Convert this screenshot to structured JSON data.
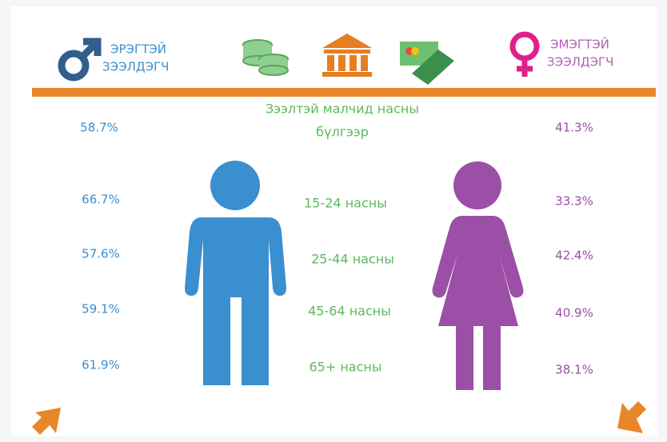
{
  "header": {
    "male_label": [
      "ЭРЭГТЭЙ",
      "ЗЭЭЛДЭГЧ"
    ],
    "female_label": [
      "ЭМЭГТЭЙ",
      "ЗЭЭЛДЭГЧ"
    ]
  },
  "title": [
    "Зээлтэй малчид насны",
    "бүлгээр"
  ],
  "overall": {
    "male": "58.7%",
    "female": "41.3%"
  },
  "age_groups": [
    {
      "label": "15-24 насны",
      "male": "66.7%",
      "female": "33.3%"
    },
    {
      "label": "25-44 насны",
      "male": "57.6%",
      "female": "42.4%"
    },
    {
      "label": "45-64 насны",
      "male": "59.1%",
      "female": "40.9%"
    },
    {
      "label": "65+ насны",
      "male": "61.9%",
      "female": "38.1%"
    }
  ]
}
